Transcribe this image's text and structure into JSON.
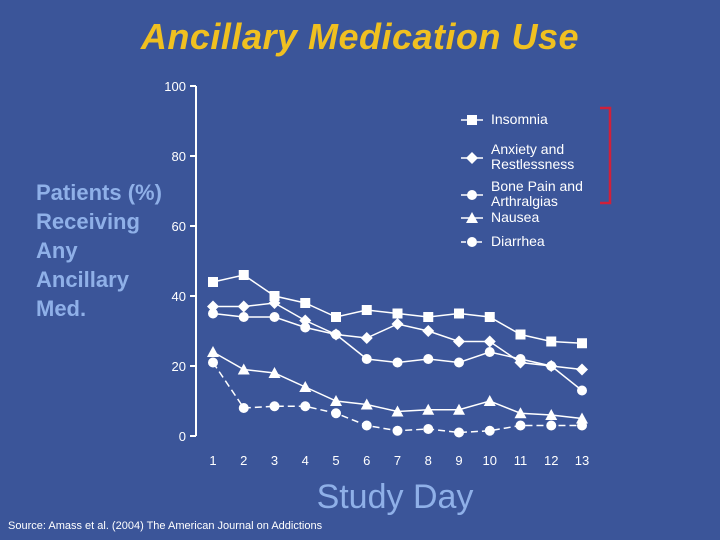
{
  "slide": {
    "title": "Ancillary Medication Use",
    "ylabel_lines": [
      "Patients (%)",
      "Receiving",
      "Any",
      "Ancillary",
      "Med."
    ],
    "xlabel": "Study Day",
    "source": "Source: Amass et al. (2004) The American Journal on Addictions"
  },
  "colors": {
    "background": "#3b5599",
    "title": "#f0c020",
    "axis_label": "#8fb0e8",
    "series": "#ffffff",
    "legend_bracket": "#d0203a"
  },
  "chart_data": {
    "type": "line",
    "title": "Ancillary Medication Use",
    "xlabel": "Study Day",
    "ylabel": "Patients (%) Receiving Any Ancillary Med.",
    "x": [
      1,
      2,
      3,
      4,
      5,
      6,
      7,
      8,
      9,
      10,
      11,
      12,
      13
    ],
    "xlim": [
      1,
      13
    ],
    "ylim": [
      0,
      100
    ],
    "yticks": [
      0,
      20,
      40,
      60,
      80,
      100
    ],
    "grid": false,
    "legend_position": "top-right",
    "series": [
      {
        "name": "Insomnia",
        "marker": "square",
        "dash": "solid",
        "values": [
          44,
          46,
          40,
          38,
          34,
          36,
          35,
          34,
          35,
          34,
          29,
          27,
          26.5
        ]
      },
      {
        "name": "Anxiety and Restlessness",
        "name_lines": [
          "Anxiety and",
          "Restlessness"
        ],
        "marker": "diamond",
        "dash": "solid",
        "values": [
          37,
          37,
          38,
          33,
          29,
          28,
          32,
          30,
          27,
          27,
          21,
          20,
          19
        ]
      },
      {
        "name": "Bone Pain and Arthralgias",
        "name_lines": [
          "Bone Pain and",
          "Arthralgias"
        ],
        "marker": "circle",
        "dash": "solid",
        "values": [
          35,
          34,
          34,
          31,
          29,
          22,
          21,
          22,
          21,
          24,
          22,
          20,
          13
        ]
      },
      {
        "name": "Nausea",
        "marker": "triangle",
        "dash": "solid",
        "values": [
          24,
          19,
          18,
          14,
          10,
          9,
          7,
          7.5,
          7.5,
          10,
          6.5,
          6,
          5
        ]
      },
      {
        "name": "Diarrhea",
        "marker": "circle",
        "dash": "dashed",
        "values": [
          21,
          8,
          8.5,
          8.5,
          6.5,
          3,
          1.5,
          2,
          1,
          1.5,
          3,
          3,
          3
        ]
      }
    ]
  }
}
